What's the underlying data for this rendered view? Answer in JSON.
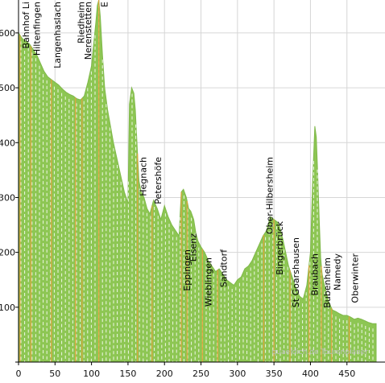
{
  "chart_data": {
    "type": "area",
    "title": "",
    "xlabel": "",
    "ylabel": "",
    "xlim": [
      0,
      490
    ],
    "ylim": [
      0,
      660
    ],
    "x_ticks": [
      0,
      50,
      100,
      150,
      200,
      250,
      300,
      350,
      400,
      450
    ],
    "y_ticks": [
      100,
      200,
      300,
      400,
      500,
      600
    ],
    "y_tick_labels": [
      "100",
      "200",
      "300",
      "400",
      "500",
      "600"
    ],
    "grid": true,
    "series": [
      {
        "name": "",
        "x": [
          0,
          5,
          10,
          15,
          20,
          25,
          30,
          35,
          40,
          45,
          50,
          55,
          60,
          65,
          70,
          75,
          80,
          85,
          90,
          95,
          100,
          103,
          106,
          108,
          110,
          112,
          115,
          118,
          122,
          126,
          130,
          135,
          140,
          145,
          150,
          152,
          155,
          158,
          160,
          163,
          165,
          168,
          172,
          176,
          180,
          185,
          190,
          195,
          200,
          205,
          210,
          215,
          220,
          223,
          226,
          230,
          233,
          236,
          240,
          243,
          246,
          250,
          255,
          260,
          265,
          270,
          275,
          280,
          285,
          290,
          295,
          300,
          305,
          310,
          315,
          320,
          325,
          330,
          335,
          340,
          345,
          350,
          355,
          358,
          362,
          366,
          370,
          375,
          380,
          385,
          390,
          395,
          400,
          403,
          406,
          408,
          410,
          412,
          414,
          416,
          420,
          425,
          430,
          435,
          440,
          445,
          450,
          455,
          460,
          465,
          470,
          475,
          480,
          485,
          490
        ],
        "y": [
          600,
          590,
          585,
          580,
          570,
          560,
          545,
          530,
          520,
          515,
          510,
          505,
          498,
          492,
          488,
          485,
          480,
          478,
          485,
          510,
          540,
          580,
          620,
          650,
          660,
          630,
          560,
          500,
          460,
          430,
          400,
          370,
          340,
          310,
          290,
          470,
          500,
          490,
          460,
          380,
          330,
          310,
          300,
          280,
          270,
          295,
          280,
          260,
          285,
          265,
          250,
          240,
          230,
          310,
          315,
          300,
          280,
          275,
          260,
          235,
          220,
          210,
          200,
          185,
          175,
          165,
          170,
          160,
          150,
          145,
          140,
          150,
          155,
          170,
          175,
          185,
          200,
          215,
          230,
          240,
          265,
          260,
          255,
          245,
          225,
          200,
          175,
          155,
          135,
          120,
          115,
          140,
          200,
          330,
          430,
          410,
          340,
          260,
          190,
          160,
          135,
          110,
          95,
          92,
          88,
          85,
          85,
          82,
          78,
          80,
          78,
          75,
          72,
          70,
          70
        ]
      }
    ],
    "annotations": [
      {
        "x": 2,
        "label": "Bahnhof Li"
      },
      {
        "x": 17,
        "label": "Hiltenfingen"
      },
      {
        "x": 45,
        "label": "Langenhaslach"
      },
      {
        "x": 78,
        "label": "Riedheim"
      },
      {
        "x": 87,
        "label": "Nerenstetten"
      },
      {
        "x": 110,
        "label": "E"
      },
      {
        "x": 163,
        "label": "Hegnach"
      },
      {
        "x": 183,
        "label": "Petershöfe"
      },
      {
        "x": 223,
        "label": "Eppingen"
      },
      {
        "x": 231,
        "label": "Eisenz"
      },
      {
        "x": 252,
        "label": "Wieblingen"
      },
      {
        "x": 273,
        "label": "Sandtorf"
      },
      {
        "x": 336,
        "label": "Ober-Hilbersheim"
      },
      {
        "x": 350,
        "label": "Bingerbrück"
      },
      {
        "x": 372,
        "label": "St Goarshausen"
      },
      {
        "x": 398,
        "label": "Braubach"
      },
      {
        "x": 415,
        "label": "Bubenheim"
      },
      {
        "x": 429,
        "label": "Namedy"
      },
      {
        "x": 453,
        "label": "Oberwinter"
      }
    ],
    "watermark": "quaeldich.de Tourenplaner",
    "colors": {
      "fill": "#8dc653",
      "dash": "#ffffff",
      "marker": "#e8a03a",
      "grid": "#d6d6d6",
      "axis": "#000000"
    }
  }
}
